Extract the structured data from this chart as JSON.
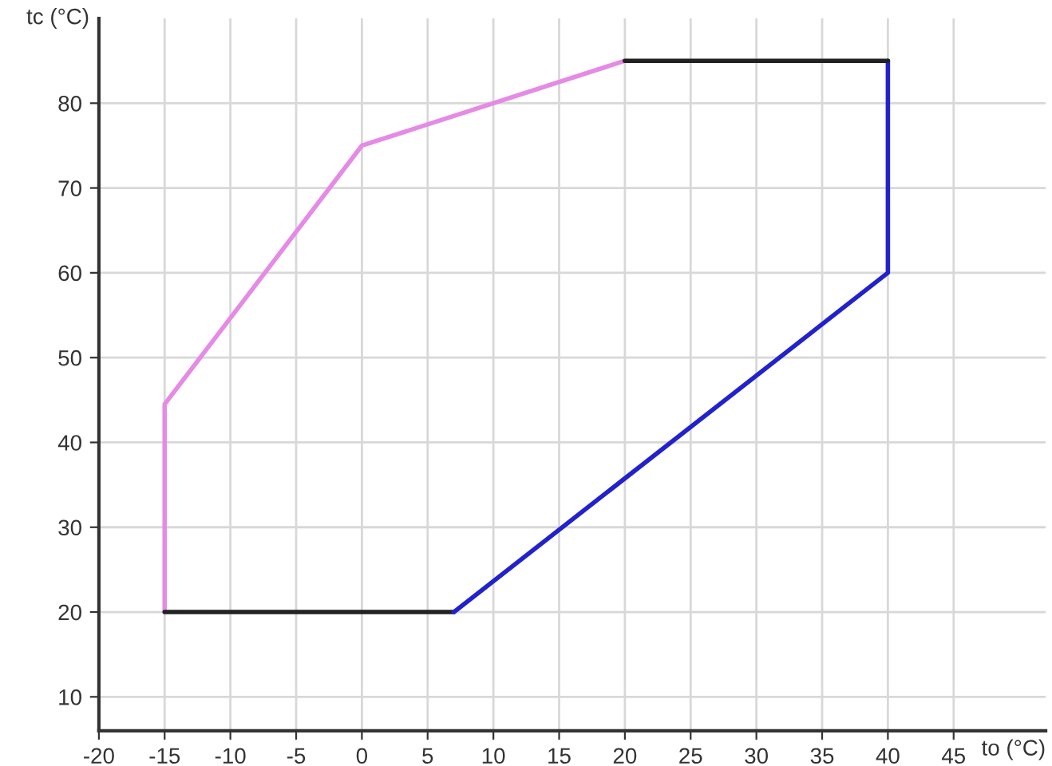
{
  "chart_data": {
    "type": "line",
    "xlabel": "to (°C)",
    "ylabel": "tc (°C)",
    "xlim": [
      -20,
      52
    ],
    "ylim": [
      6,
      90
    ],
    "xticks": [
      -20,
      -15,
      -10,
      -5,
      0,
      5,
      10,
      15,
      20,
      25,
      30,
      35,
      40,
      45
    ],
    "yticks": [
      10,
      20,
      30,
      40,
      50,
      60,
      70,
      80
    ],
    "grid": true,
    "marker": "none",
    "line_style": "solid",
    "series": [
      {
        "color": "#e58ae5",
        "x": [
          20,
          0,
          -15,
          -15
        ],
        "values": [
          85,
          75,
          44.5,
          20
        ]
      },
      {
        "color": "#222222",
        "x": [
          -15,
          7
        ],
        "values": [
          20,
          20
        ]
      },
      {
        "color": "#2222cc",
        "x": [
          7,
          40,
          40
        ],
        "values": [
          20,
          60,
          85
        ]
      },
      {
        "color": "#222222",
        "x": [
          40,
          20
        ],
        "values": [
          85,
          85
        ]
      }
    ]
  }
}
